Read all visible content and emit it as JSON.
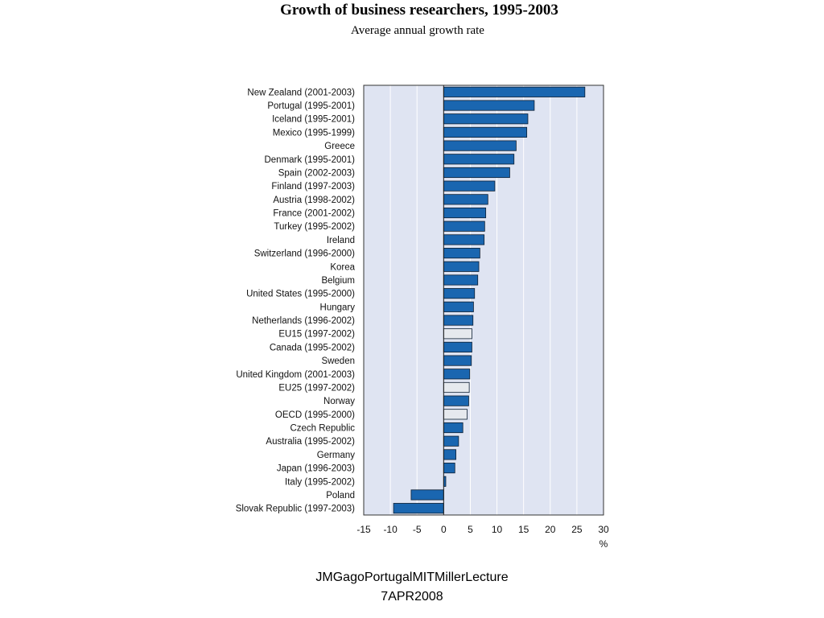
{
  "title": "Growth of business researchers, 1995-2003",
  "subtitle": "Average annual growth rate",
  "footer": {
    "line1": "JMGagoPortugalMITMillerLecture",
    "line2": "7APR2008"
  },
  "colors": {
    "plot_bg": "#dfe4f2",
    "bar_main": "#1a66b0",
    "bar_aggregate": "#e6e9ee",
    "bar_stroke": "#0d1f33",
    "grid": "#ffffff"
  },
  "chart_data": {
    "type": "bar",
    "orientation": "horizontal",
    "title": "Growth of business researchers, 1995-2003",
    "subtitle": "Average annual growth rate",
    "xlabel": "%",
    "xlim": [
      -15,
      30
    ],
    "xticks": [
      -15,
      -10,
      -5,
      0,
      5,
      10,
      15,
      20,
      25,
      30
    ],
    "grid": true,
    "categories": [
      "New Zealand (2001-2003)",
      "Portugal (1995-2001)",
      "Iceland (1995-2001)",
      "Mexico (1995-1999)",
      "Greece",
      "Denmark (1995-2001)",
      "Spain (2002-2003)",
      "Finland (1997-2003)",
      "Austria (1998-2002)",
      "France (2001-2002)",
      "Turkey (1995-2002)",
      "Ireland",
      "Switzerland (1996-2000)",
      "Korea",
      "Belgium",
      "United States (1995-2000)",
      "Hungary",
      "Netherlands (1996-2002)",
      "EU15 (1997-2002)",
      "Canada (1995-2002)",
      "Sweden",
      "United Kingdom (2001-2003)",
      "EU25 (1997-2002)",
      "Norway",
      "OECD (1995-2000)",
      "Czech Republic",
      "Australia (1995-2002)",
      "Germany",
      "Japan (1996-2003)",
      "Italy (1995-2002)",
      "Poland",
      "Slovak Republic (1997-2003)"
    ],
    "values": [
      26.5,
      17.0,
      15.8,
      15.6,
      13.6,
      13.2,
      12.4,
      9.6,
      8.3,
      7.9,
      7.7,
      7.6,
      6.8,
      6.6,
      6.4,
      5.8,
      5.6,
      5.5,
      5.3,
      5.3,
      5.2,
      4.9,
      4.8,
      4.7,
      4.4,
      3.6,
      2.8,
      2.3,
      2.1,
      0.4,
      -6.1,
      -9.4
    ],
    "aggregate": [
      false,
      false,
      false,
      false,
      false,
      false,
      false,
      false,
      false,
      false,
      false,
      false,
      false,
      false,
      false,
      false,
      false,
      false,
      true,
      false,
      false,
      false,
      true,
      false,
      true,
      false,
      false,
      false,
      false,
      false,
      false,
      false
    ]
  }
}
